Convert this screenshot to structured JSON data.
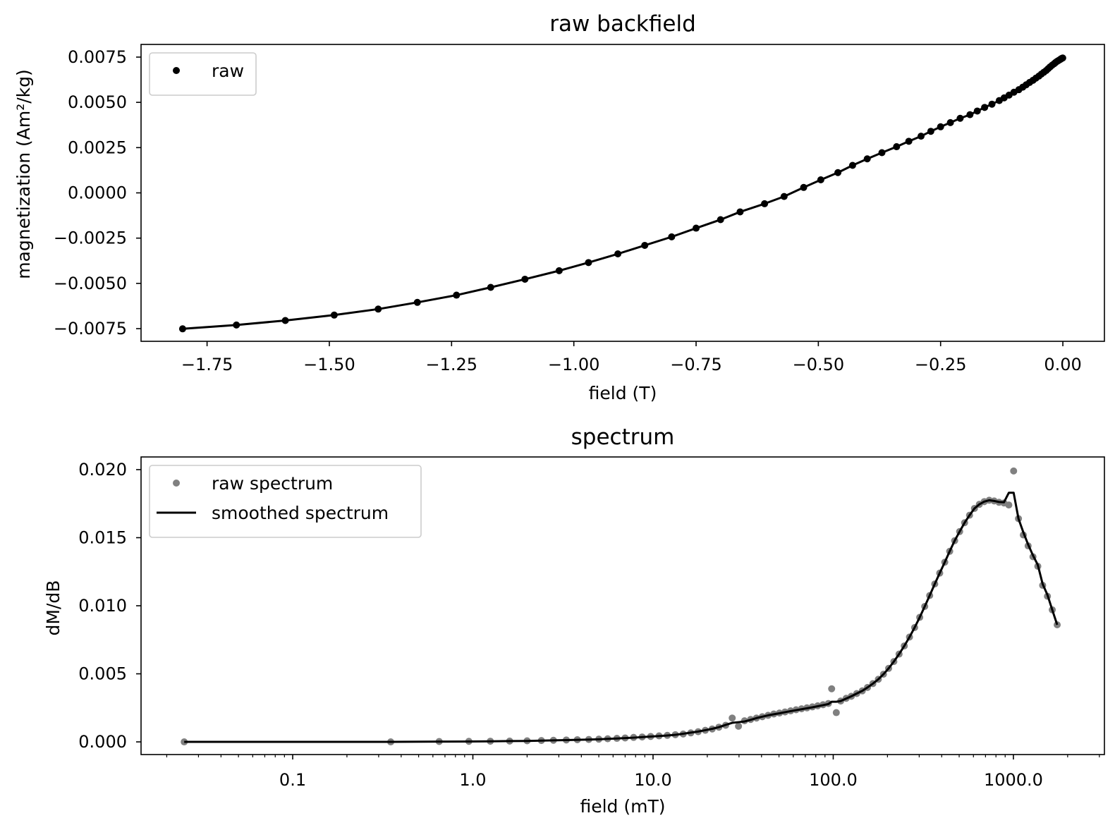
{
  "chart_data": [
    {
      "type": "scatter",
      "title": "raw backfield",
      "xlabel": "field (T)",
      "ylabel": "magnetization (Am²/kg)",
      "xlim": [
        -1.885,
        0.085
      ],
      "ylim": [
        -0.0082,
        0.0082
      ],
      "xscale": "linear",
      "grid": false,
      "legend_position": "top-left",
      "x_ticks": [
        {
          "value": -1.75,
          "label": "−1.75"
        },
        {
          "value": -1.5,
          "label": "−1.50"
        },
        {
          "value": -1.25,
          "label": "−1.25"
        },
        {
          "value": -1.0,
          "label": "−1.00"
        },
        {
          "value": -0.75,
          "label": "−0.75"
        },
        {
          "value": -0.5,
          "label": "−0.50"
        },
        {
          "value": -0.25,
          "label": "−0.25"
        },
        {
          "value": 0.0,
          "label": "0.00"
        }
      ],
      "y_ticks": [
        {
          "value": 0.0075,
          "label": "0.0075"
        },
        {
          "value": 0.005,
          "label": "0.0050"
        },
        {
          "value": 0.0025,
          "label": "0.0025"
        },
        {
          "value": 0.0,
          "label": "0.0000"
        },
        {
          "value": -0.0025,
          "label": "−0.0025"
        },
        {
          "value": -0.005,
          "label": "−0.0050"
        },
        {
          "value": -0.0075,
          "label": "−0.0075"
        }
      ],
      "series": [
        {
          "name": "raw",
          "style": "markers+line",
          "color": "#000000",
          "x": [
            -1.8,
            -1.69,
            -1.59,
            -1.49,
            -1.4,
            -1.32,
            -1.24,
            -1.17,
            -1.1,
            -1.03,
            -0.97,
            -0.91,
            -0.855,
            -0.8,
            -0.75,
            -0.7,
            -0.66,
            -0.61,
            -0.57,
            -0.53,
            -0.495,
            -0.46,
            -0.43,
            -0.4,
            -0.37,
            -0.34,
            -0.315,
            -0.29,
            -0.27,
            -0.25,
            -0.23,
            -0.21,
            -0.19,
            -0.175,
            -0.16,
            -0.145,
            -0.13,
            -0.12,
            -0.11,
            -0.1,
            -0.09,
            -0.082,
            -0.075,
            -0.068,
            -0.061,
            -0.055,
            -0.049,
            -0.044,
            -0.039,
            -0.034,
            -0.03,
            -0.026,
            -0.022,
            -0.018,
            -0.015,
            -0.012,
            -0.009,
            -0.006,
            -0.004,
            -0.002,
            -0.0003
          ],
          "y": [
            -0.00751,
            -0.0073,
            -0.00705,
            -0.00675,
            -0.00642,
            -0.00605,
            -0.00565,
            -0.00522,
            -0.00477,
            -0.0043,
            -0.00385,
            -0.00337,
            -0.0029,
            -0.00243,
            -0.00195,
            -0.00148,
            -0.00105,
            -0.0006,
            -0.0002,
            0.0003,
            0.00072,
            0.00112,
            0.00152,
            0.00188,
            0.00222,
            0.00255,
            0.00285,
            0.00313,
            0.0034,
            0.00365,
            0.00388,
            0.00412,
            0.00432,
            0.00452,
            0.00472,
            0.0049,
            0.0051,
            0.00525,
            0.0054,
            0.00556,
            0.0057,
            0.00584,
            0.00597,
            0.0061,
            0.00622,
            0.00634,
            0.00645,
            0.00656,
            0.00666,
            0.00676,
            0.00686,
            0.00696,
            0.00705,
            0.00713,
            0.0072,
            0.00726,
            0.00731,
            0.00736,
            0.0074,
            0.00743,
            0.00745
          ]
        }
      ]
    },
    {
      "type": "scatter",
      "title": "spectrum",
      "xlabel": "field (mT)",
      "ylabel": "dM/dB",
      "xscale": "log",
      "xlim": [
        0.0144,
        3200
      ],
      "ylim": [
        -0.00093,
        0.02093
      ],
      "grid": false,
      "legend_position": "top-left",
      "x_ticks": [
        {
          "value": 0.1,
          "label": "0.1"
        },
        {
          "value": 1.0,
          "label": "1.0"
        },
        {
          "value": 10.0,
          "label": "10.0"
        },
        {
          "value": 100.0,
          "label": "100.0"
        },
        {
          "value": 1000.0,
          "label": "1000.0"
        }
      ],
      "y_ticks": [
        {
          "value": 0.02,
          "label": "0.020"
        },
        {
          "value": 0.015,
          "label": "0.015"
        },
        {
          "value": 0.01,
          "label": "0.010"
        },
        {
          "value": 0.005,
          "label": "0.005"
        },
        {
          "value": 0.0,
          "label": "0.000"
        }
      ],
      "series": [
        {
          "name": "raw spectrum",
          "style": "markers",
          "color": "#808080",
          "x": [
            0.025,
            0.35,
            0.65,
            0.95,
            1.25,
            1.6,
            2.0,
            2.4,
            2.8,
            3.3,
            3.8,
            4.4,
            5.0,
            5.6,
            6.3,
            7.0,
            7.8,
            8.7,
            9.7,
            10.8,
            12.0,
            13.3,
            14.7,
            16.2,
            17.8,
            19.5,
            21.3,
            23.2,
            25.3,
            27.5,
            29.8,
            32.2,
            34.8,
            37.5,
            40.4,
            43.5,
            46.8,
            50.3,
            54.0,
            58.0,
            62.2,
            66.7,
            71.5,
            76.6,
            82.0,
            87.8,
            94.0,
            98.0,
            104.0,
            110.0,
            118.0,
            126.0,
            135.0,
            145.0,
            155.0,
            166.0,
            178.0,
            190.0,
            203.0,
            217.0,
            232.0,
            248.0,
            265.0,
            283.0,
            302.0,
            322.0,
            343.0,
            366.0,
            390.0,
            416.0,
            443.0,
            472.0,
            503.0,
            536.0,
            571.0,
            608.0,
            647.0,
            689.0,
            734.0,
            782.0,
            832.0,
            886.0,
            943.0,
            1003.0,
            1067.0,
            1135.0,
            1207.0,
            1284.0,
            1366.0,
            1453.0,
            1545.0,
            1643.0,
            1750.0
          ],
          "y": [
            0.0,
            0.0,
            3e-05,
            4e-05,
            5e-05,
            6e-05,
            8e-05,
            0.0001,
            0.00012,
            0.00014,
            0.00016,
            0.00018,
            0.0002,
            0.00023,
            0.00026,
            0.00029,
            0.00033,
            0.00036,
            0.0004,
            0.00044,
            0.00048,
            0.00053,
            0.00058,
            0.00066,
            0.00075,
            0.00085,
            0.00095,
            0.00108,
            0.00122,
            0.00175,
            0.00115,
            0.00155,
            0.00165,
            0.00175,
            0.00185,
            0.00195,
            0.00205,
            0.00212,
            0.0022,
            0.00228,
            0.00236,
            0.00243,
            0.0025,
            0.00257,
            0.00265,
            0.00273,
            0.00282,
            0.0039,
            0.00215,
            0.003,
            0.0032,
            0.00335,
            0.00355,
            0.00375,
            0.004,
            0.00428,
            0.0046,
            0.00497,
            0.0054,
            0.0059,
            0.00645,
            0.00705,
            0.0077,
            0.0084,
            0.00915,
            0.00995,
            0.01075,
            0.0116,
            0.0124,
            0.0132,
            0.014,
            0.01478,
            0.01545,
            0.0161,
            0.01665,
            0.01715,
            0.01745,
            0.01765,
            0.01775,
            0.0177,
            0.0176,
            0.01755,
            0.0174,
            0.0199,
            0.0164,
            0.0152,
            0.0144,
            0.0136,
            0.0129,
            0.0115,
            0.0107,
            0.0097,
            0.0086
          ]
        },
        {
          "name": "smoothed spectrum",
          "style": "line",
          "color": "#000000",
          "x": [
            0.025,
            0.35,
            0.65,
            0.95,
            1.25,
            1.6,
            2.0,
            2.4,
            2.8,
            3.3,
            3.8,
            4.4,
            5.0,
            5.6,
            6.3,
            7.0,
            7.8,
            8.7,
            9.7,
            10.8,
            12.0,
            13.3,
            14.7,
            16.2,
            17.8,
            19.5,
            21.3,
            23.2,
            25.3,
            27.5,
            29.8,
            32.2,
            34.8,
            37.5,
            40.4,
            43.5,
            46.8,
            50.3,
            54.0,
            58.0,
            62.2,
            66.7,
            71.5,
            76.6,
            82.0,
            87.8,
            94.0,
            98.0,
            104.0,
            110.0,
            118.0,
            126.0,
            135.0,
            145.0,
            155.0,
            166.0,
            178.0,
            190.0,
            203.0,
            217.0,
            232.0,
            248.0,
            265.0,
            283.0,
            302.0,
            322.0,
            343.0,
            366.0,
            390.0,
            416.0,
            443.0,
            472.0,
            503.0,
            536.0,
            571.0,
            608.0,
            647.0,
            689.0,
            734.0,
            782.0,
            832.0,
            886.0,
            943.0,
            1003.0,
            1067.0,
            1135.0,
            1207.0,
            1284.0,
            1366.0,
            1453.0,
            1545.0,
            1643.0,
            1750.0
          ],
          "y": [
            0.0,
            0.0,
            2e-05,
            3e-05,
            4e-05,
            6e-05,
            7e-05,
            9e-05,
            0.00011,
            0.00013,
            0.00015,
            0.00017,
            0.00019,
            0.00022,
            0.00025,
            0.00028,
            0.00031,
            0.00035,
            0.00039,
            0.00043,
            0.00047,
            0.00052,
            0.0006,
            0.00068,
            0.00076,
            0.00086,
            0.00096,
            0.00108,
            0.00125,
            0.0014,
            0.00145,
            0.0015,
            0.00162,
            0.00175,
            0.00185,
            0.00195,
            0.00203,
            0.0021,
            0.00218,
            0.00226,
            0.00233,
            0.0024,
            0.00247,
            0.00254,
            0.00262,
            0.0027,
            0.00278,
            0.00295,
            0.00295,
            0.003,
            0.00318,
            0.00335,
            0.00355,
            0.00375,
            0.004,
            0.00428,
            0.0046,
            0.00497,
            0.0054,
            0.0059,
            0.00645,
            0.00705,
            0.0077,
            0.0084,
            0.00915,
            0.00995,
            0.01075,
            0.0116,
            0.0124,
            0.0132,
            0.014,
            0.01478,
            0.01545,
            0.0161,
            0.01665,
            0.01715,
            0.01745,
            0.01765,
            0.01775,
            0.0177,
            0.01762,
            0.0176,
            0.0183,
            0.0183,
            0.0164,
            0.0154,
            0.0145,
            0.0137,
            0.013,
            0.0116,
            0.0108,
            0.0097,
            0.0086
          ]
        }
      ]
    }
  ]
}
